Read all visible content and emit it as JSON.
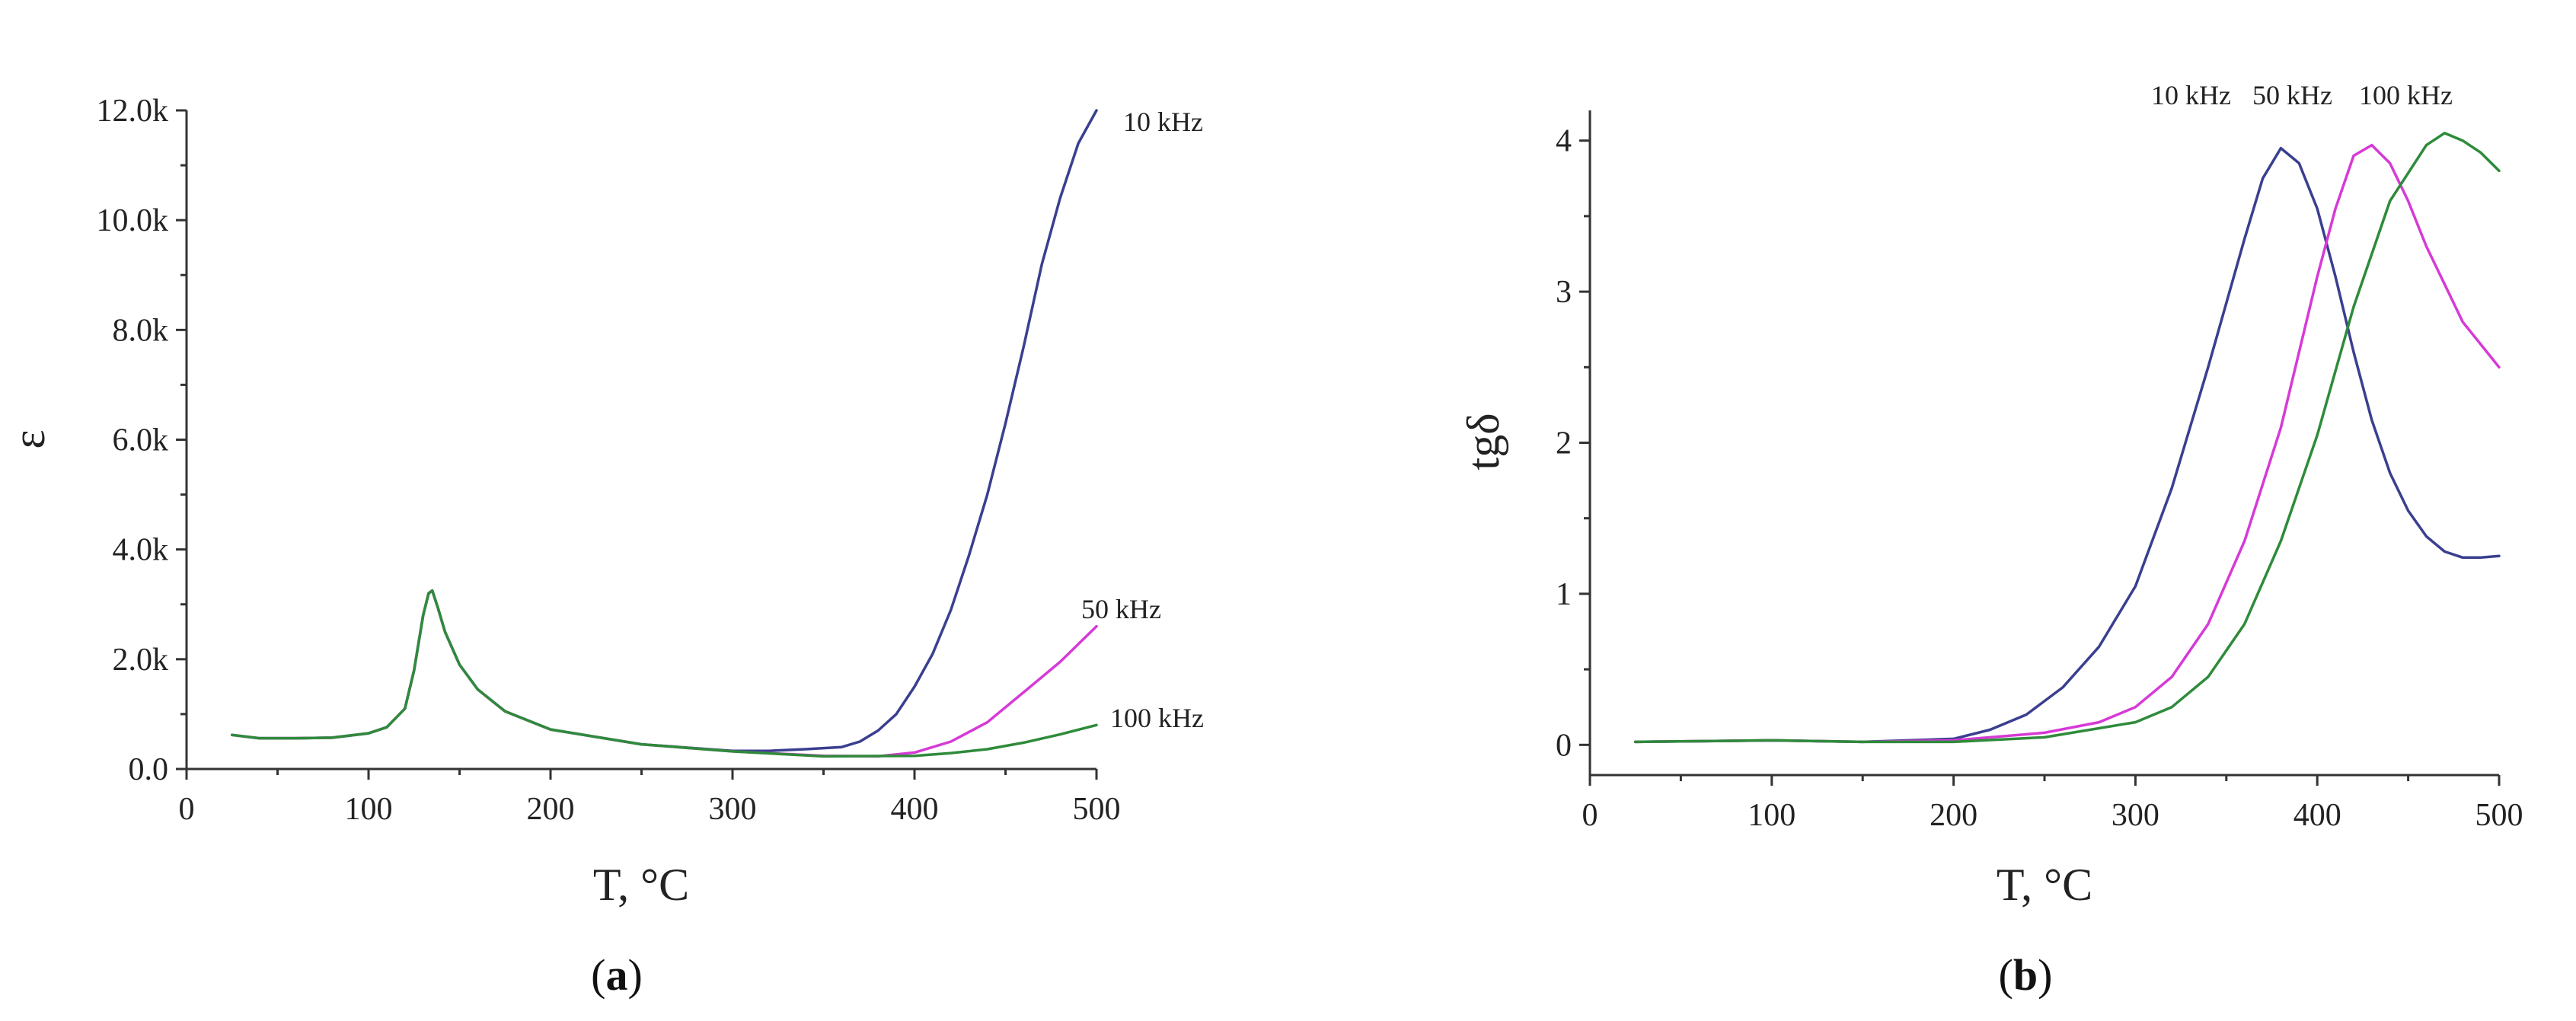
{
  "chart_data": [
    {
      "panel_label": "a",
      "type": "line",
      "title": "",
      "xlabel": "T, °C",
      "ylabel": "ε",
      "xlim": [
        0,
        500
      ],
      "ylim": [
        0,
        12000
      ],
      "xticks": [
        0,
        100,
        200,
        300,
        400,
        500
      ],
      "xtick_labels": [
        "0",
        "100",
        "200",
        "300",
        "400",
        "500"
      ],
      "yticks": [
        0,
        2000,
        4000,
        6000,
        8000,
        10000,
        12000
      ],
      "ytick_labels": [
        "0.0",
        "2.0k",
        "4.0k",
        "6.0k",
        "8.0k",
        "10.0k",
        "12.0k"
      ],
      "grid": false,
      "series": [
        {
          "name": "10 kHz",
          "color": "#3a3f8f",
          "x": [
            25,
            40,
            60,
            80,
            100,
            110,
            120,
            125,
            130,
            133,
            135,
            138,
            142,
            150,
            160,
            175,
            200,
            250,
            300,
            320,
            340,
            360,
            370,
            380,
            390,
            400,
            410,
            420,
            430,
            440,
            450,
            460,
            470,
            480,
            490,
            500
          ],
          "y": [
            620,
            560,
            560,
            570,
            650,
            760,
            1100,
            1800,
            2800,
            3200,
            3250,
            2950,
            2500,
            1900,
            1450,
            1050,
            720,
            450,
            330,
            330,
            360,
            400,
            500,
            700,
            1000,
            1500,
            2100,
            2900,
            3900,
            5000,
            6300,
            7700,
            9200,
            10400,
            11400,
            12000
          ]
        },
        {
          "name": "50 kHz",
          "color": "#d63ad6",
          "x": [
            25,
            40,
            60,
            80,
            100,
            110,
            120,
            125,
            130,
            133,
            135,
            138,
            142,
            150,
            160,
            175,
            200,
            250,
            300,
            350,
            380,
            400,
            420,
            440,
            460,
            480,
            500
          ],
          "y": [
            620,
            560,
            560,
            570,
            650,
            760,
            1100,
            1800,
            2800,
            3200,
            3250,
            2950,
            2500,
            1900,
            1450,
            1050,
            720,
            450,
            320,
            240,
            230,
            300,
            500,
            850,
            1400,
            1950,
            2600
          ]
        },
        {
          "name": "100 kHz",
          "color": "#2e8b3a",
          "x": [
            25,
            40,
            60,
            80,
            100,
            110,
            120,
            125,
            130,
            133,
            135,
            138,
            142,
            150,
            160,
            175,
            200,
            250,
            300,
            350,
            400,
            420,
            440,
            460,
            480,
            500
          ],
          "y": [
            620,
            560,
            560,
            570,
            650,
            760,
            1100,
            1800,
            2800,
            3200,
            3250,
            2950,
            2500,
            1900,
            1450,
            1050,
            720,
            450,
            320,
            230,
            240,
            290,
            360,
            480,
            630,
            800
          ]
        }
      ]
    },
    {
      "panel_label": "b",
      "type": "line",
      "title": "",
      "xlabel": "T, °C",
      "ylabel": "tgδ",
      "xlim": [
        0,
        500
      ],
      "ylim": [
        -0.2,
        4.2
      ],
      "xticks": [
        0,
        100,
        200,
        300,
        400,
        500
      ],
      "xtick_labels": [
        "0",
        "100",
        "200",
        "300",
        "400",
        "500"
      ],
      "yticks": [
        0,
        1,
        2,
        3,
        4
      ],
      "ytick_labels": [
        "0",
        "1",
        "2",
        "3",
        "4"
      ],
      "grid": false,
      "series": [
        {
          "name": "10 kHz",
          "color": "#3a3f8f",
          "x": [
            25,
            100,
            150,
            200,
            220,
            240,
            260,
            280,
            300,
            320,
            340,
            360,
            370,
            380,
            390,
            400,
            410,
            420,
            430,
            440,
            450,
            460,
            470,
            480,
            490,
            500
          ],
          "y": [
            0.02,
            0.03,
            0.02,
            0.04,
            0.1,
            0.2,
            0.38,
            0.65,
            1.05,
            1.7,
            2.5,
            3.35,
            3.75,
            3.95,
            3.85,
            3.55,
            3.1,
            2.6,
            2.15,
            1.8,
            1.55,
            1.38,
            1.28,
            1.24,
            1.24,
            1.25
          ]
        },
        {
          "name": "50 kHz",
          "color": "#d63ad6",
          "x": [
            25,
            100,
            150,
            200,
            250,
            280,
            300,
            320,
            340,
            360,
            380,
            400,
            410,
            420,
            430,
            440,
            450,
            460,
            470,
            480,
            490,
            500
          ],
          "y": [
            0.02,
            0.03,
            0.02,
            0.03,
            0.08,
            0.15,
            0.25,
            0.45,
            0.8,
            1.35,
            2.1,
            3.1,
            3.55,
            3.9,
            3.97,
            3.85,
            3.6,
            3.3,
            3.05,
            2.8,
            2.65,
            2.5
          ]
        },
        {
          "name": "100 kHz",
          "color": "#2e8b3a",
          "x": [
            25,
            100,
            150,
            200,
            250,
            300,
            320,
            340,
            360,
            380,
            400,
            420,
            440,
            460,
            470,
            480,
            490,
            500
          ],
          "y": [
            0.02,
            0.03,
            0.02,
            0.02,
            0.05,
            0.15,
            0.25,
            0.45,
            0.8,
            1.35,
            2.05,
            2.9,
            3.6,
            3.97,
            4.05,
            4.0,
            3.92,
            3.8
          ]
        }
      ]
    }
  ]
}
